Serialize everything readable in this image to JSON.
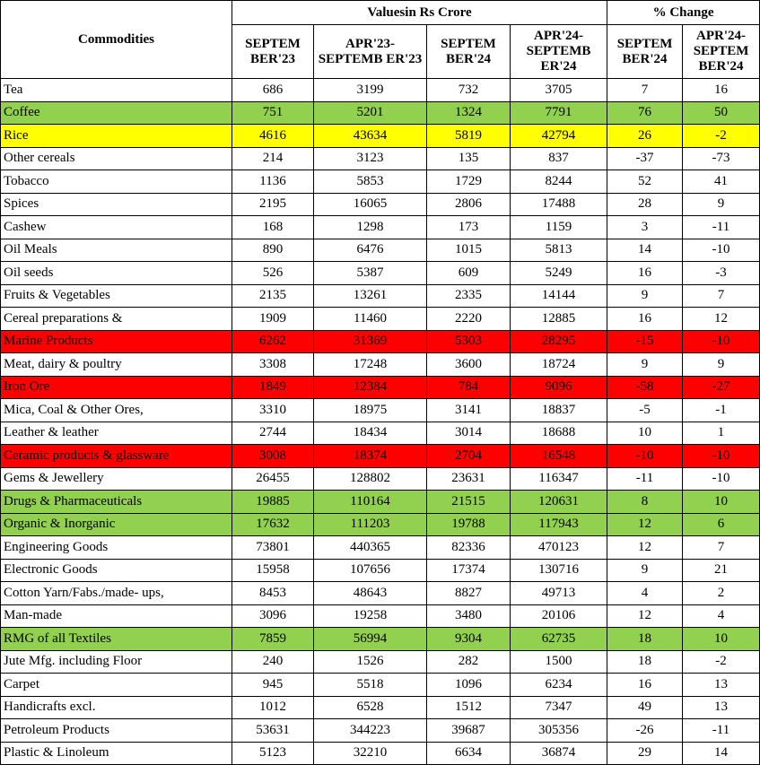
{
  "header": {
    "commodities": "Commodities",
    "values_group": "Valuesin Rs Crore",
    "change_group": "% Change",
    "columns": [
      "SEPTEM BER'23",
      "APR'23- SEPTEMB ER'23",
      "SEPTEM BER'24",
      "APR'24- SEPTEMB ER'24",
      "SEPTEM BER'24",
      "APR'24- SEPTEM BER'24"
    ]
  },
  "rows": [
    {
      "cells": [
        "Tea",
        686,
        3199,
        732,
        3705,
        7,
        16
      ]
    },
    {
      "cells": [
        "Coffee",
        751,
        5201,
        1324,
        7791,
        76,
        50
      ],
      "color": "#92d050"
    },
    {
      "cells": [
        "Rice",
        4616,
        43634,
        5819,
        42794,
        26,
        -2
      ],
      "color": "#ffff00"
    },
    {
      "cells": [
        "Other cereals",
        214,
        3123,
        135,
        837,
        -37,
        -73
      ]
    },
    {
      "cells": [
        "Tobacco",
        1136,
        5853,
        1729,
        8244,
        52,
        41
      ]
    },
    {
      "cells": [
        "Spices",
        2195,
        16065,
        2806,
        17488,
        28,
        9
      ]
    },
    {
      "cells": [
        "Cashew",
        168,
        1298,
        173,
        1159,
        3,
        -11
      ]
    },
    {
      "cells": [
        "Oil Meals",
        890,
        6476,
        1015,
        5813,
        14,
        -10
      ]
    },
    {
      "cells": [
        "Oil seeds",
        526,
        5387,
        609,
        5249,
        16,
        -3
      ]
    },
    {
      "cells": [
        "Fruits & Vegetables",
        2135,
        13261,
        2335,
        14144,
        9,
        7
      ]
    },
    {
      "cells": [
        "Cereal preparations &",
        1909,
        11460,
        2220,
        12885,
        16,
        12
      ]
    },
    {
      "cells": [
        "Marine Products",
        6262,
        31369,
        5303,
        28295,
        -15,
        -10
      ],
      "color": "#ff0000"
    },
    {
      "cells": [
        "Meat, dairy & poultry",
        3308,
        17248,
        3600,
        18724,
        9,
        9
      ]
    },
    {
      "cells": [
        "Iron Ore",
        1849,
        12384,
        784,
        9096,
        -58,
        -27
      ],
      "color": "#ff0000"
    },
    {
      "cells": [
        "Mica, Coal & Other Ores,",
        3310,
        18975,
        3141,
        18837,
        -5,
        -1
      ]
    },
    {
      "cells": [
        "Leather & leather",
        2744,
        18434,
        3014,
        18688,
        10,
        1
      ]
    },
    {
      "cells": [
        "Ceramic products & glassware",
        3008,
        18374,
        2704,
        16548,
        -10,
        -10
      ],
      "color": "#ff0000"
    },
    {
      "cells": [
        "Gems & Jewellery",
        26455,
        128802,
        23631,
        116347,
        -11,
        -10
      ]
    },
    {
      "cells": [
        "Drugs & Pharmaceuticals",
        19885,
        110164,
        21515,
        120631,
        8,
        10
      ],
      "color": "#92d050"
    },
    {
      "cells": [
        "Organic & Inorganic",
        17632,
        111203,
        19788,
        117943,
        12,
        6
      ],
      "color": "#92d050"
    },
    {
      "cells": [
        "Engineering Goods",
        73801,
        440365,
        82336,
        470123,
        12,
        7
      ]
    },
    {
      "cells": [
        "Electronic Goods",
        15958,
        107656,
        17374,
        130716,
        9,
        21
      ]
    },
    {
      "cells": [
        "Cotton Yarn/Fabs./made- ups,",
        8453,
        48643,
        8827,
        49713,
        4,
        2
      ]
    },
    {
      "cells": [
        "Man-made",
        3096,
        19258,
        3480,
        20106,
        12,
        4
      ]
    },
    {
      "cells": [
        "RMG of all Textiles",
        7859,
        56994,
        9304,
        62735,
        18,
        10
      ],
      "color": "#92d050"
    },
    {
      "cells": [
        "Jute Mfg. including Floor",
        240,
        1526,
        282,
        1500,
        18,
        -2
      ]
    },
    {
      "cells": [
        "Carpet",
        945,
        5518,
        1096,
        6234,
        16,
        13
      ]
    },
    {
      "cells": [
        "Handicrafts excl.",
        1012,
        6528,
        1512,
        7347,
        49,
        13
      ]
    },
    {
      "cells": [
        "Petroleum Products",
        53631,
        344223,
        39687,
        305356,
        -26,
        -11
      ]
    },
    {
      "cells": [
        "Plastic & Linoleum",
        5123,
        32210,
        6634,
        36874,
        29,
        14
      ]
    }
  ]
}
